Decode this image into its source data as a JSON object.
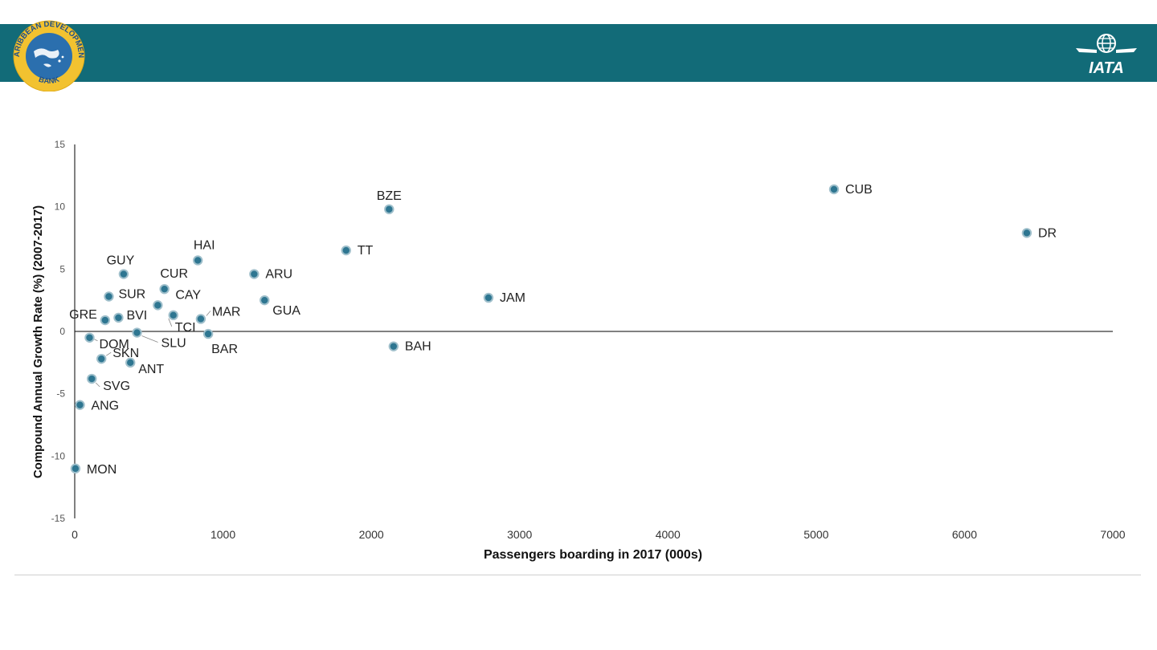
{
  "colors": {
    "banner": "#126b78",
    "point_fill": "#2e7691",
    "point_stroke": "#9fbfcb",
    "axis": "#000000",
    "tick_text": "#555555",
    "label_text": "#222222",
    "cdb_ring": "#f2c230",
    "cdb_inner": "#2b6fae",
    "iata_blue": "#1c4f8f"
  },
  "header": {
    "cdb_logo": {
      "icon": "caribbean-development-bank-logo",
      "text_top": "CARIBBEAN DEVELOPMENT",
      "text_bottom": "BANK"
    },
    "iata_logo": {
      "icon": "iata-logo",
      "text": "IATA"
    }
  },
  "chart_data": {
    "type": "scatter",
    "title": "",
    "xlabel": "Passengers boarding in 2017 (000s)",
    "ylabel": "Compound Annual Growth Rate (%) (2007-2017)",
    "xlim": [
      0,
      7000
    ],
    "ylim": [
      -15,
      15
    ],
    "x_ticks": [
      "0",
      "1000",
      "2000",
      "3000",
      "4000",
      "5000",
      "6000",
      "7000"
    ],
    "y_ticks": [
      "15",
      "10",
      "5",
      "0",
      "-5",
      "-10",
      "-15"
    ],
    "grid": false,
    "legend": "none",
    "zero_line": true,
    "points": [
      {
        "label": "CUB",
        "x": 5120,
        "y": 11.4
      },
      {
        "label": "DR",
        "x": 6420,
        "y": 7.9
      },
      {
        "label": "BZE",
        "x": 2120,
        "y": 9.8
      },
      {
        "label": "TT",
        "x": 1830,
        "y": 6.5
      },
      {
        "label": "JAM",
        "x": 2790,
        "y": 2.7
      },
      {
        "label": "BAH",
        "x": 2150,
        "y": -1.2
      },
      {
        "label": "HAI",
        "x": 830,
        "y": 5.7
      },
      {
        "label": "ARU",
        "x": 1210,
        "y": 4.6
      },
      {
        "label": "GUA",
        "x": 1280,
        "y": 2.5
      },
      {
        "label": "GUY",
        "x": 330,
        "y": 4.6
      },
      {
        "label": "CUR",
        "x": 605,
        "y": 3.4
      },
      {
        "label": "SUR",
        "x": 230,
        "y": 2.8
      },
      {
        "label": "CAY",
        "x": 560,
        "y": 2.1
      },
      {
        "label": "TCI",
        "x": 665,
        "y": 1.3
      },
      {
        "label": "MAR",
        "x": 850,
        "y": 1.0
      },
      {
        "label": "BVI",
        "x": 295,
        "y": 1.1
      },
      {
        "label": "GRE",
        "x": 205,
        "y": 0.9
      },
      {
        "label": "SLU",
        "x": 420,
        "y": -0.1
      },
      {
        "label": "BAR",
        "x": 900,
        "y": -0.2
      },
      {
        "label": "DOM",
        "x": 100,
        "y": -0.5
      },
      {
        "label": "SKN",
        "x": 180,
        "y": -2.2
      },
      {
        "label": "ANT",
        "x": 375,
        "y": -2.5
      },
      {
        "label": "SVG",
        "x": 115,
        "y": -3.8
      },
      {
        "label": "ANG",
        "x": 35,
        "y": -5.9
      },
      {
        "label": "MON",
        "x": 5,
        "y": -11.0
      }
    ]
  }
}
